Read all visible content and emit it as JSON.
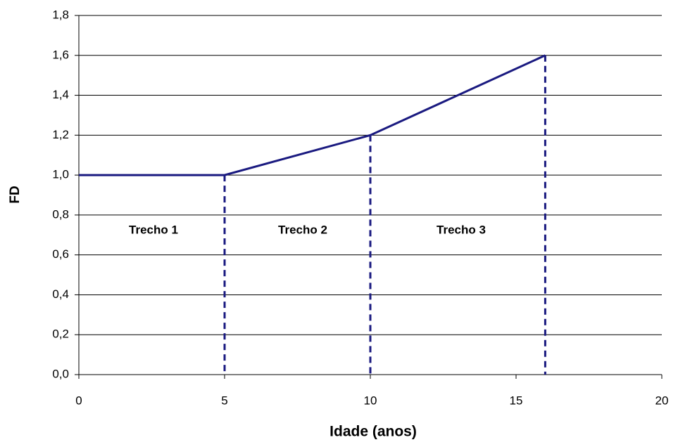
{
  "chart_data": {
    "type": "line",
    "x": [
      0,
      5,
      10,
      16
    ],
    "series": [
      {
        "name": "FD",
        "color": "#1a1a80",
        "values": [
          1.0,
          1.0,
          1.2,
          1.6
        ]
      }
    ],
    "xlabel": "Idade (anos)",
    "ylabel": "FD",
    "xlim": [
      0,
      20
    ],
    "xticks": [
      0,
      5,
      10,
      15,
      20
    ],
    "ylim": [
      0,
      1.8
    ],
    "yticks": [
      {
        "value": 0,
        "label": "0,0"
      },
      {
        "value": 0.2,
        "label": "0,2"
      },
      {
        "value": 0.4,
        "label": "0,4"
      },
      {
        "value": 0.6,
        "label": "0,6"
      },
      {
        "value": 0.8,
        "label": "0,8"
      },
      {
        "value": 1.0,
        "label": "1,0"
      },
      {
        "value": 1.2,
        "label": "1,2"
      },
      {
        "value": 1.4,
        "label": "1,4"
      },
      {
        "value": 1.6,
        "label": "1,6"
      },
      {
        "value": 1.8,
        "label": "1,8"
      }
    ],
    "annotations": [
      "Trecho 1",
      "Trecho 2",
      "Trecho 3"
    ],
    "grid": true
  }
}
